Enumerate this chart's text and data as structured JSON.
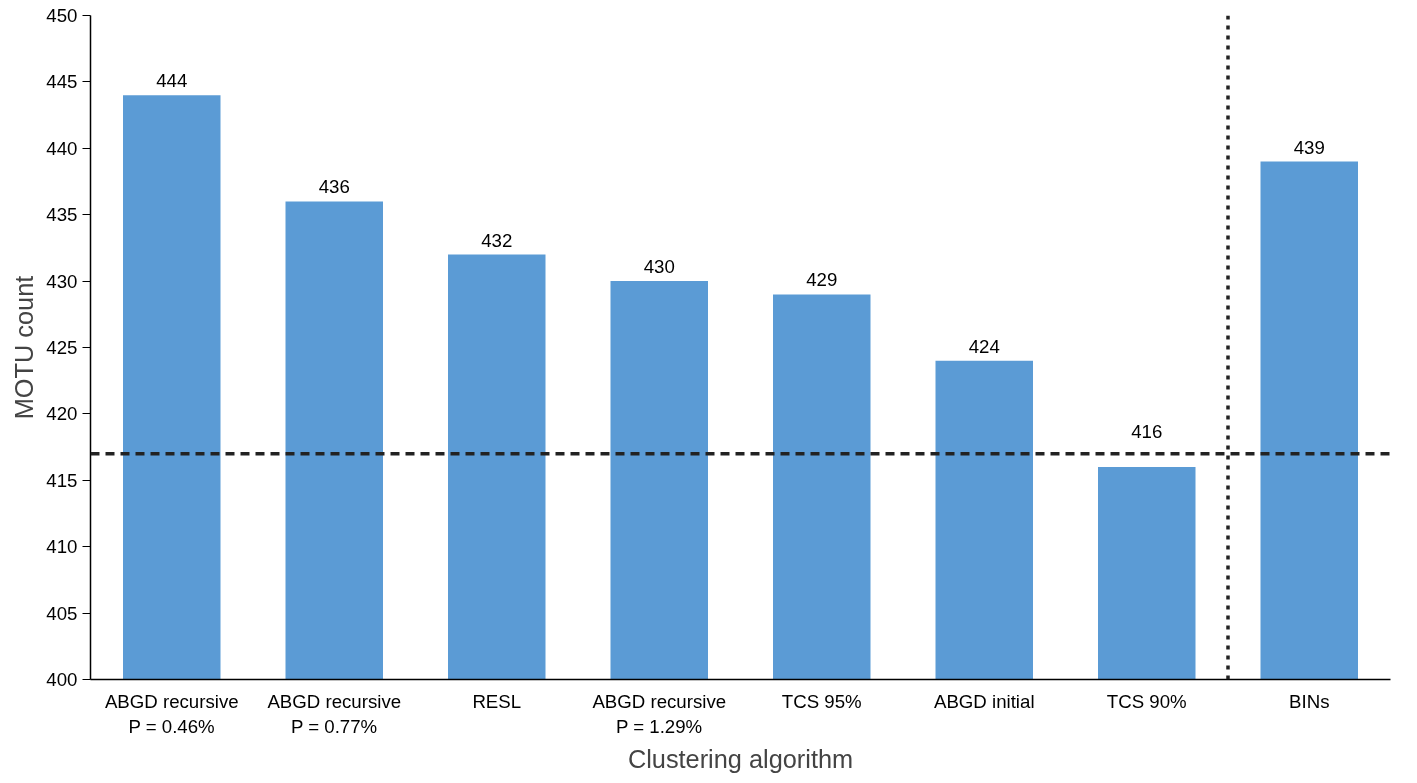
{
  "chart_data": {
    "type": "bar",
    "xlabel": "Clustering algorithm",
    "ylabel": "MOTU count",
    "categories": [
      "ABGD recursive\nP = 0.46%",
      "ABGD recursive\nP = 0.77%",
      "RESL",
      "ABGD recursive\nP = 1.29%",
      "TCS 95%",
      "ABGD initial",
      "TCS 90%",
      "BINs"
    ],
    "values": [
      444,
      436,
      432,
      430,
      429,
      424,
      416,
      439
    ],
    "color": "#5b9bd5",
    "ylim": [
      400,
      450
    ],
    "yticks": [
      400,
      405,
      410,
      415,
      420,
      425,
      430,
      435,
      440,
      445,
      450
    ],
    "data_labels": true,
    "grid": false,
    "ref_lines": [
      {
        "axis": "y",
        "value": 417,
        "color": "#222222",
        "line_style": "dashed"
      }
    ]
  }
}
